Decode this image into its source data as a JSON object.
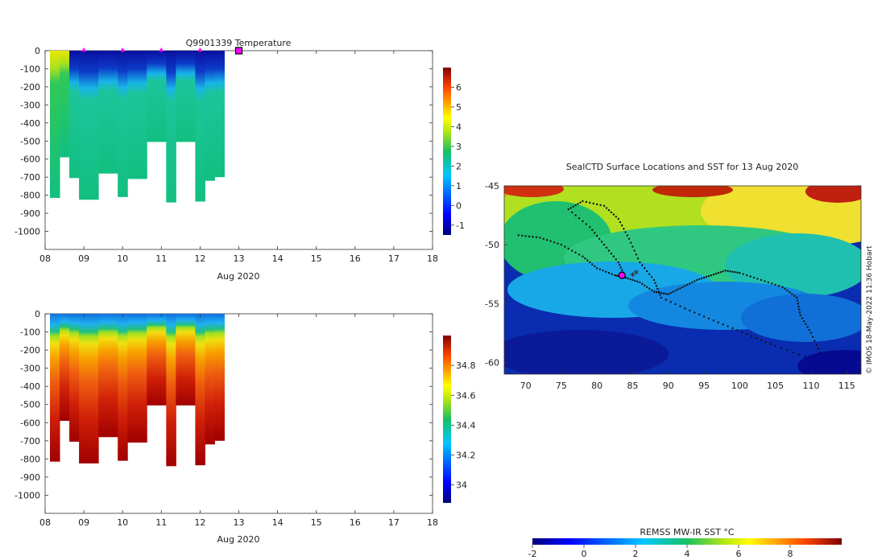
{
  "chart_data": [
    {
      "type": "heatmap",
      "title": "Q9901339  Temperature",
      "xlabel": "Aug 2020",
      "ylabel": "",
      "x_ticks": [
        "08",
        "09",
        "10",
        "11",
        "12",
        "13",
        "14",
        "15",
        "16",
        "17",
        "18"
      ],
      "xlim": [
        8,
        18
      ],
      "y_ticks": [
        0,
        -100,
        -200,
        -300,
        -400,
        -500,
        -600,
        -700,
        -800,
        -900,
        -1000
      ],
      "ylim": [
        -1100,
        0
      ],
      "colorbar": {
        "ticks": [
          -1,
          0,
          1,
          2,
          3,
          4,
          5,
          6
        ],
        "range": [
          -1.5,
          7
        ]
      },
      "profile_times": [
        8.25,
        8.5,
        8.75,
        9.0,
        9.25,
        9.5,
        9.75,
        10.0,
        10.25,
        10.5,
        10.75,
        11.0,
        11.25,
        11.5,
        11.75,
        12.0,
        12.25,
        12.5,
        12.75
      ],
      "profile_max_depths": [
        815,
        590,
        705,
        825,
        825,
        680,
        680,
        810,
        710,
        710,
        505,
        505,
        840,
        505,
        505,
        835,
        720,
        700,
        0
      ],
      "markers_x": [
        9,
        10,
        11,
        12
      ],
      "current_x": 13
    },
    {
      "type": "heatmap",
      "title": "",
      "xlabel": "Aug 2020",
      "ylabel": "",
      "x_ticks": [
        "08",
        "09",
        "10",
        "11",
        "12",
        "13",
        "14",
        "15",
        "16",
        "17",
        "18"
      ],
      "xlim": [
        8,
        18
      ],
      "y_ticks": [
        0,
        -100,
        -200,
        -300,
        -400,
        -500,
        -600,
        -700,
        -800,
        -900,
        -1000
      ],
      "ylim": [
        -1100,
        0
      ],
      "colorbar": {
        "ticks": [
          34,
          34.2,
          34.4,
          34.6,
          34.8
        ],
        "range": [
          33.88,
          35.0
        ]
      }
    },
    {
      "type": "heatmap",
      "title": "SealCTD Surface Locations and SST for 13 Aug 2020",
      "xlabel": "",
      "ylabel": "",
      "x_ticks": [
        70,
        75,
        80,
        85,
        90,
        95,
        100,
        105,
        110,
        115
      ],
      "xlim": [
        67,
        117
      ],
      "y_ticks": [
        -45,
        -50,
        -55,
        -60
      ],
      "ylim": [
        -61,
        -45
      ],
      "side_note": "© IMOS 18-May-2022 11:36 Hobart",
      "current_position": [
        83.5,
        -52.6
      ],
      "colorbar": {
        "label": "REMSS MW-IR SST °C",
        "ticks": [
          -2,
          0,
          2,
          4,
          6,
          8
        ],
        "range": [
          -2,
          10
        ]
      }
    }
  ],
  "colors": {
    "jet_blue": "#00007f",
    "jet_cyan": "#00c8ff",
    "jet_green": "#14b870",
    "jet_yellow": "#ffff00",
    "jet_red": "#7f0000",
    "marker": "#ff00ff",
    "track": "#111111"
  }
}
